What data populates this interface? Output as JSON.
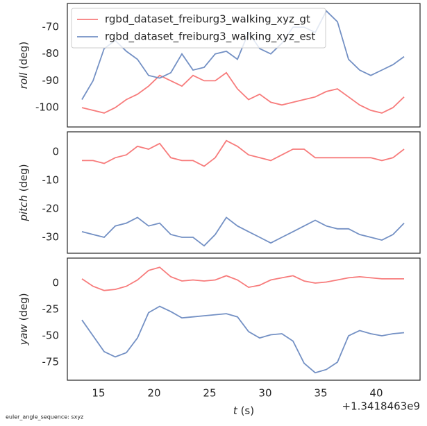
{
  "chart_data": [
    {
      "type": "line",
      "ylabel": {
        "symbol": "roll",
        "unit": "(deg)"
      },
      "legend": "upper left",
      "x": [
        13.5,
        14.5,
        15.5,
        16.5,
        17.5,
        18.5,
        19.5,
        20.5,
        21.5,
        22.5,
        23.5,
        24.5,
        25.5,
        26.5,
        27.5,
        28.5,
        29.5,
        30.5,
        31.5,
        32.5,
        33.5,
        34.5,
        35.5,
        36.5,
        37.5,
        38.5,
        39.5,
        40.5,
        41.5,
        42.5
      ],
      "xlim": [
        12.19,
        43.94
      ],
      "ylim": [
        -107.2,
        -61.2
      ],
      "yticks": [
        -100,
        -90,
        -80,
        -70
      ],
      "series": [
        {
          "name": "rgbd_dataset_freiburg3_walking_xyz_gt",
          "color": "#f77b7b",
          "values": [
            -100,
            -101,
            -102,
            -100,
            -97,
            -95,
            -92,
            -88,
            -90,
            -92,
            -88,
            -90,
            -90,
            -87,
            -93,
            -97,
            -95,
            -98,
            -99,
            -98,
            -97,
            -96,
            -94,
            -93,
            -96,
            -99,
            -101,
            -102,
            -100,
            -96
          ]
        },
        {
          "name": "rgbd_dataset_freiburg3_walking_xyz_est",
          "color": "#7390c4",
          "values": [
            -97,
            -90,
            -78,
            -75,
            -79,
            -82,
            -88,
            -89,
            -87,
            -80,
            -86,
            -85,
            -80,
            -79,
            -82,
            -72,
            -78,
            -80,
            -76,
            -70,
            -70,
            -72,
            -64,
            -68,
            -82,
            -86,
            -88,
            -86,
            -84,
            -81
          ]
        }
      ]
    },
    {
      "type": "line",
      "ylabel": {
        "symbol": "pitch",
        "unit": "(deg)"
      },
      "x": [
        13.5,
        14.5,
        15.5,
        16.5,
        17.5,
        18.5,
        19.5,
        20.5,
        21.5,
        22.5,
        23.5,
        24.5,
        25.5,
        26.5,
        27.5,
        28.5,
        29.5,
        30.5,
        31.5,
        32.5,
        33.5,
        34.5,
        35.5,
        36.5,
        37.5,
        38.5,
        39.5,
        40.5,
        41.5,
        42.5
      ],
      "xlim": [
        12.19,
        43.94
      ],
      "ylim": [
        -35.6,
        7.1
      ],
      "yticks": [
        -30,
        -20,
        -10,
        0
      ],
      "series": [
        {
          "color": "#f77b7b",
          "values": [
            -3,
            -3,
            -4,
            -2,
            -1,
            2,
            1,
            3,
            -2,
            -3,
            -3,
            -5,
            -2,
            4,
            2,
            -1,
            -2,
            -3,
            -1,
            1,
            1,
            -2,
            -2,
            -2,
            -2,
            -2,
            -2,
            -3,
            -2,
            1
          ]
        },
        {
          "color": "#7390c4",
          "values": [
            -28,
            -29,
            -30,
            -26,
            -25,
            -23,
            -26,
            -25,
            -29,
            -30,
            -30,
            -33,
            -29,
            -23,
            -26,
            -28,
            -30,
            -32,
            -30,
            -28,
            -26,
            -24,
            -26,
            -27,
            -27,
            -29,
            -30,
            -31,
            -29,
            -25
          ]
        }
      ]
    },
    {
      "type": "line",
      "ylabel": {
        "symbol": "yaw",
        "unit": "(deg)"
      },
      "xlabel": {
        "symbol": "t",
        "unit": "(s)"
      },
      "x_offset_label": "+1.3418463e9",
      "x": [
        13.5,
        14.5,
        15.5,
        16.5,
        17.5,
        18.5,
        19.5,
        20.5,
        21.5,
        22.5,
        23.5,
        24.5,
        25.5,
        26.5,
        27.5,
        28.5,
        29.5,
        30.5,
        31.5,
        32.5,
        33.5,
        34.5,
        35.5,
        36.5,
        37.5,
        38.5,
        39.5,
        40.5,
        41.5,
        42.5
      ],
      "xlim": [
        12.19,
        43.94
      ],
      "xticks": [
        15,
        20,
        25,
        30,
        35,
        40
      ],
      "ylim": [
        -92.1,
        23.7
      ],
      "yticks": [
        -75,
        -50,
        -25,
        0
      ],
      "series": [
        {
          "color": "#f77b7b",
          "values": [
            4,
            -3,
            -7,
            -6,
            -3,
            3,
            12,
            15,
            6,
            2,
            3,
            2,
            3,
            7,
            3,
            -4,
            -2,
            3,
            5,
            7,
            2,
            0,
            1,
            3,
            5,
            6,
            5,
            4,
            4,
            4
          ]
        },
        {
          "color": "#7390c4",
          "values": [
            -35,
            -50,
            -65,
            -70,
            -66,
            -52,
            -28,
            -22,
            -27,
            -33,
            -32,
            -31,
            -30,
            -29,
            -32,
            -46,
            -52,
            -49,
            -48,
            -55,
            -76,
            -85,
            -82,
            -75,
            -50,
            -45,
            -48,
            -50,
            -48,
            -47
          ]
        }
      ]
    }
  ],
  "footer": "euler_angle_sequence: sxyz"
}
